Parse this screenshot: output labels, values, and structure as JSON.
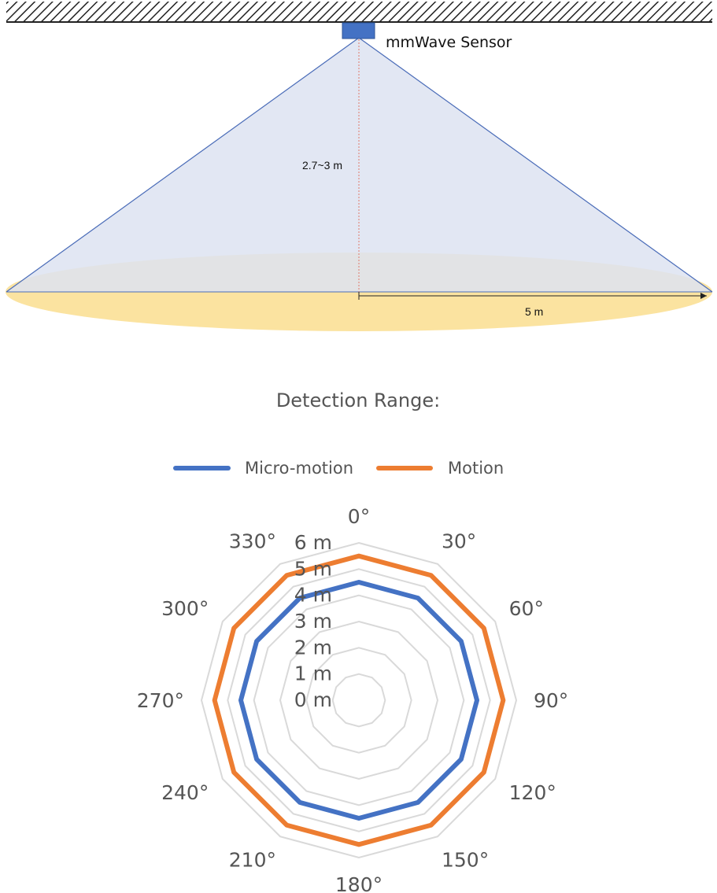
{
  "sensor": {
    "label": "mmWave Sensor",
    "height_label": "2.7~3 m",
    "radius_label": "5 m",
    "colors": {
      "cone": "#dde3f1",
      "cone_edge": "#4a6cb8",
      "floor": "#fbe3a0",
      "sensor_box": "#4472c4",
      "axis_dash": "#e07a6a"
    }
  },
  "title": "Detection Range:",
  "chart_data": {
    "type": "radar",
    "title": "Detection Range:",
    "categories": [
      "0°",
      "30°",
      "60°",
      "90°",
      "120°",
      "150°",
      "180°",
      "210°",
      "240°",
      "270°",
      "300°",
      "330°"
    ],
    "radial_ticks": [
      "0 m",
      "1 m",
      "2 m",
      "3 m",
      "4 m",
      "5 m",
      "6 m"
    ],
    "rlim": [
      0,
      6
    ],
    "grid": true,
    "legend": "top",
    "series": [
      {
        "name": "Micro-motion",
        "color": "#4472c4",
        "values": [
          4.5,
          4.5,
          4.5,
          4.5,
          4.5,
          4.5,
          4.5,
          4.5,
          4.5,
          4.5,
          4.5,
          4.5
        ]
      },
      {
        "name": "Motion",
        "color": "#ed7d31",
        "values": [
          5.5,
          5.5,
          5.5,
          5.5,
          5.5,
          5.5,
          5.5,
          5.5,
          5.5,
          5.5,
          5.5,
          5.5
        ]
      }
    ]
  }
}
